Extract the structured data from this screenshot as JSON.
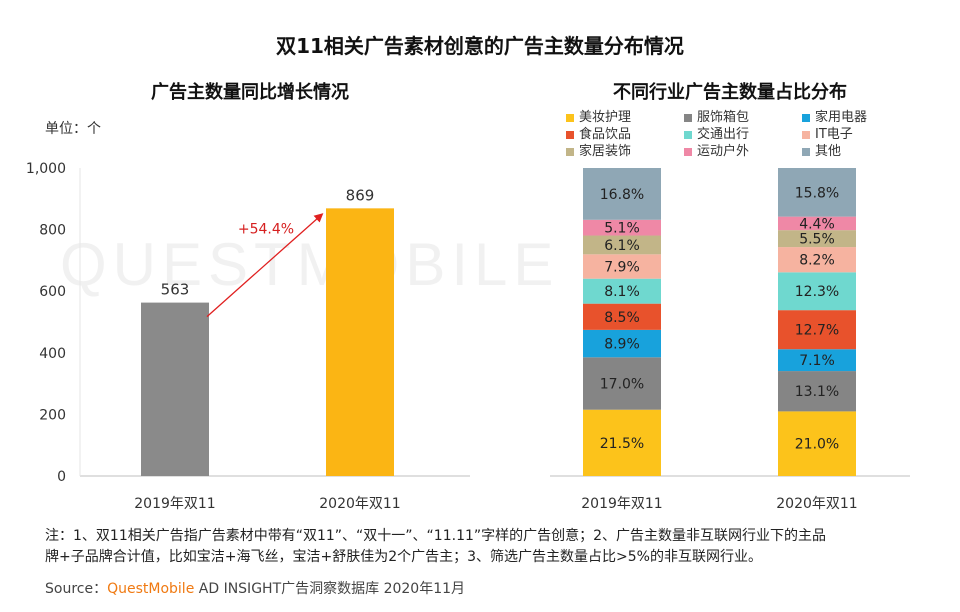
{
  "main_title": "双11相关广告素材创意的广告主数量分布情况",
  "left_title": "广告主数量同比增长情况",
  "right_title": "不同行业广告主数量占比分布",
  "unit_label": "单位：个",
  "watermark": "QUESTMOBILE",
  "notes_line1": "注：1、双11相关广告指广告素材中带有“双11”、“双十一”、“11.11”字样的广告创意；2、广告主数量非互联网行业下的主品",
  "notes_line2": "牌+子品牌合计值，比如宝洁+海飞丝，宝洁+舒肤佳为2个广告主；3、筛选广告主数量占比>5%的非互联网行业。",
  "source_prefix": "Source：",
  "source_brand": "QuestMobile",
  "source_suffix": " AD INSIGHT广告洞察数据库 2020年11月",
  "chart_data": [
    {
      "type": "bar",
      "title": "广告主数量同比增长情况",
      "categories": [
        "2019年双11",
        "2020年双11"
      ],
      "values": [
        563,
        869
      ],
      "value_labels": [
        "563",
        "869"
      ],
      "ylim": [
        0,
        1000
      ],
      "yticks": [
        0,
        200,
        400,
        600,
        800,
        1000
      ],
      "ytick_labels": [
        "0",
        "200",
        "400",
        "600",
        "800",
        "1,000"
      ],
      "growth_annotation": "+54.4%",
      "colors": [
        "#8a8a8a",
        "#fbb514"
      ],
      "grid": false
    },
    {
      "type": "bar",
      "stacked": true,
      "title": "不同行业广告主数量占比分布",
      "categories": [
        "2019年双11",
        "2020年双11"
      ],
      "legend_position": "top",
      "series": [
        {
          "name": "美妆护理",
          "color": "#fcc31b",
          "values": [
            21.5,
            21.0
          ],
          "labels": [
            "21.5%",
            "21.0%"
          ]
        },
        {
          "name": "服饰箱包",
          "color": "#858585",
          "values": [
            17.0,
            13.1
          ],
          "labels": [
            "17.0%",
            "13.1%"
          ]
        },
        {
          "name": "家用电器",
          "color": "#18a2dc",
          "values": [
            8.9,
            7.1
          ],
          "labels": [
            "8.9%",
            "7.1%"
          ]
        },
        {
          "name": "食品饮品",
          "color": "#e8522c",
          "values": [
            8.5,
            12.7
          ],
          "labels": [
            "8.5%",
            "12.7%"
          ]
        },
        {
          "name": "交通出行",
          "color": "#6fd8cf",
          "values": [
            8.1,
            12.3
          ],
          "labels": [
            "8.1%",
            "12.3%"
          ]
        },
        {
          "name": "IT电子",
          "color": "#f6b3a0",
          "values": [
            7.9,
            8.2
          ],
          "labels": [
            "7.9%",
            "8.2%"
          ]
        },
        {
          "name": "家居装饰",
          "color": "#c2b588",
          "values": [
            6.1,
            5.5
          ],
          "labels": [
            "6.1%",
            "5.5%"
          ]
        },
        {
          "name": "运动户外",
          "color": "#ef88a6",
          "values": [
            5.1,
            4.4
          ],
          "labels": [
            "5.1%",
            "4.4%"
          ]
        },
        {
          "name": "其他",
          "color": "#8fa7b5",
          "values": [
            16.8,
            15.8
          ],
          "labels": [
            "16.8%",
            "15.8%"
          ]
        }
      ]
    }
  ]
}
